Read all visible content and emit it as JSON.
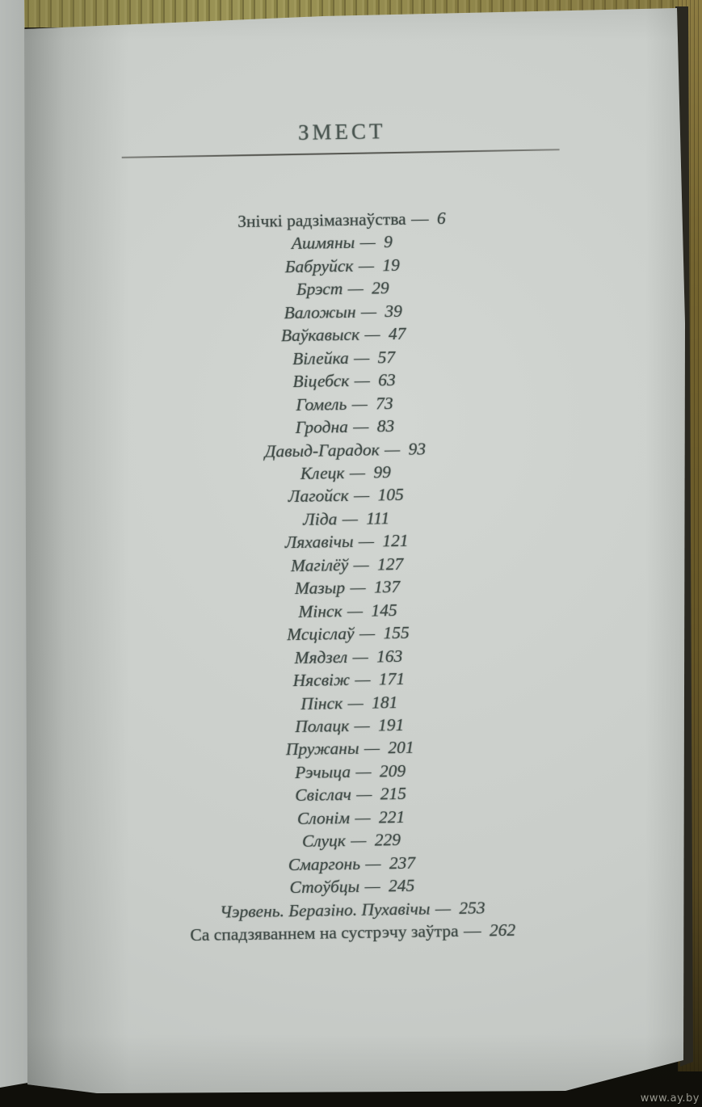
{
  "photo": {
    "watermark": "www.ay.by"
  },
  "page": {
    "title": "ЗМЕСТ",
    "separator": " — ",
    "entries": [
      {
        "title": "Знічкі радзімазнаўства",
        "page": "6",
        "style": "upright"
      },
      {
        "title": "Ашмяны",
        "page": "9",
        "style": "italic"
      },
      {
        "title": "Бабруйск",
        "page": "19",
        "style": "italic"
      },
      {
        "title": "Брэст",
        "page": "29",
        "style": "italic"
      },
      {
        "title": "Валожын",
        "page": "39",
        "style": "italic"
      },
      {
        "title": "Ваўкавыск",
        "page": "47",
        "style": "italic"
      },
      {
        "title": "Вілейка",
        "page": "57",
        "style": "italic"
      },
      {
        "title": "Віцебск",
        "page": "63",
        "style": "italic"
      },
      {
        "title": "Гомель",
        "page": "73",
        "style": "italic"
      },
      {
        "title": "Гродна",
        "page": "83",
        "style": "italic"
      },
      {
        "title": "Давыд-Гарадок",
        "page": "93",
        "style": "italic"
      },
      {
        "title": "Клецк",
        "page": "99",
        "style": "italic"
      },
      {
        "title": "Лагойск",
        "page": "105",
        "style": "italic"
      },
      {
        "title": "Ліда",
        "page": "111",
        "style": "italic"
      },
      {
        "title": "Ляхавічы",
        "page": "121",
        "style": "italic"
      },
      {
        "title": "Магілёў",
        "page": "127",
        "style": "italic"
      },
      {
        "title": "Мазыр",
        "page": "137",
        "style": "italic"
      },
      {
        "title": "Мінск",
        "page": "145",
        "style": "italic"
      },
      {
        "title": "Мсціслаў",
        "page": "155",
        "style": "italic"
      },
      {
        "title": "Мядзел",
        "page": "163",
        "style": "italic"
      },
      {
        "title": "Нясвіж",
        "page": "171",
        "style": "italic"
      },
      {
        "title": "Пінск",
        "page": "181",
        "style": "italic"
      },
      {
        "title": "Полацк",
        "page": "191",
        "style": "italic"
      },
      {
        "title": "Пружаны",
        "page": "201",
        "style": "italic"
      },
      {
        "title": "Рэчыца",
        "page": "209",
        "style": "italic"
      },
      {
        "title": "Свіслач",
        "page": "215",
        "style": "italic"
      },
      {
        "title": "Слонім",
        "page": "221",
        "style": "italic"
      },
      {
        "title": "Слуцк",
        "page": "229",
        "style": "italic"
      },
      {
        "title": "Смаргонь",
        "page": "237",
        "style": "italic"
      },
      {
        "title": "Стоўбцы",
        "page": "245",
        "style": "italic"
      },
      {
        "title": "Чэрвень. Беразіно. Пухавічы",
        "page": "253",
        "style": "italic"
      },
      {
        "title": "Са спадзяваннем на сустрэчу заўтра",
        "page": "262",
        "style": "upright"
      }
    ]
  },
  "colors": {
    "paper": "#c9cdc9",
    "ink": "#3e4945",
    "rule": "#55554e",
    "wood_top": "#968f52",
    "wood_side": "#6e5e2d",
    "shadow_dark": "#15140d",
    "watermark": "#a8a89e"
  }
}
